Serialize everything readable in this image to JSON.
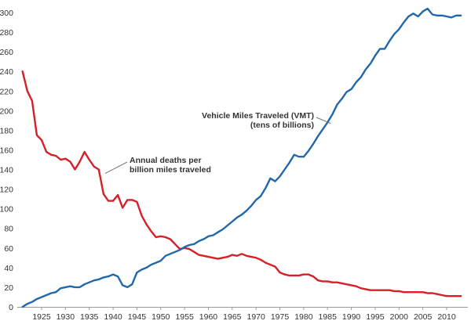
{
  "chart_data": {
    "type": "line",
    "title": "",
    "xlabel": "",
    "ylabel": "",
    "xlim": [
      1920,
      2014
    ],
    "ylim": [
      0,
      300
    ],
    "x_ticks": [
      1925,
      1930,
      1935,
      1940,
      1945,
      1950,
      1955,
      1960,
      1965,
      1970,
      1975,
      1980,
      1985,
      1990,
      1995,
      2000,
      2005,
      2010
    ],
    "y_ticks": [
      0,
      20,
      40,
      60,
      80,
      100,
      120,
      140,
      160,
      180,
      200,
      220,
      240,
      260,
      280,
      300
    ],
    "grid": false,
    "legend": "none",
    "series": [
      {
        "name": "Annual deaths per billion miles traveled",
        "color": "#d62027",
        "x": [
          1921,
          1922,
          1923,
          1924,
          1925,
          1926,
          1927,
          1928,
          1929,
          1930,
          1931,
          1932,
          1933,
          1934,
          1935,
          1936,
          1937,
          1938,
          1939,
          1940,
          1941,
          1942,
          1943,
          1944,
          1945,
          1946,
          1947,
          1948,
          1949,
          1950,
          1951,
          1952,
          1953,
          1954,
          1955,
          1956,
          1957,
          1958,
          1959,
          1960,
          1961,
          1962,
          1963,
          1964,
          1965,
          1966,
          1967,
          1968,
          1969,
          1970,
          1971,
          1972,
          1973,
          1974,
          1975,
          1976,
          1977,
          1978,
          1979,
          1980,
          1981,
          1982,
          1983,
          1984,
          1985,
          1986,
          1987,
          1988,
          1989,
          1990,
          1991,
          1992,
          1993,
          1994,
          1995,
          1996,
          1997,
          1998,
          1999,
          2000,
          2001,
          2002,
          2003,
          2004,
          2005,
          2006,
          2007,
          2008,
          2009,
          2010,
          2011,
          2012,
          2013
        ],
        "values": [
          240,
          220,
          210,
          175,
          170,
          158,
          155,
          154,
          150,
          151,
          148,
          140,
          148,
          158,
          150,
          143,
          140,
          115,
          108,
          108,
          114,
          101,
          109,
          109,
          107,
          93,
          84,
          77,
          71,
          72,
          71,
          69,
          64,
          59,
          60,
          59,
          56,
          53,
          52,
          51,
          50,
          49,
          50,
          51,
          53,
          52,
          54,
          52,
          51,
          50,
          48,
          45,
          43,
          41,
          35,
          33,
          32,
          32,
          32,
          33,
          33,
          31,
          27,
          26,
          26,
          25,
          25,
          24,
          23,
          22,
          21,
          19,
          18,
          17,
          17,
          17,
          17,
          17,
          16,
          16,
          15,
          15,
          15,
          15,
          15,
          14,
          14,
          13,
          12,
          11,
          11,
          11,
          11
        ]
      },
      {
        "name": "Vehicle Miles Traveled (VMT) (tens of billions)",
        "color": "#2167ab",
        "x": [
          1921,
          1922,
          1923,
          1924,
          1925,
          1926,
          1927,
          1928,
          1929,
          1930,
          1931,
          1932,
          1933,
          1934,
          1935,
          1936,
          1937,
          1938,
          1939,
          1940,
          1941,
          1942,
          1943,
          1944,
          1945,
          1946,
          1947,
          1948,
          1949,
          1950,
          1951,
          1952,
          1953,
          1954,
          1955,
          1956,
          1957,
          1958,
          1959,
          1960,
          1961,
          1962,
          1963,
          1964,
          1965,
          1966,
          1967,
          1968,
          1969,
          1970,
          1971,
          1972,
          1973,
          1974,
          1975,
          1976,
          1977,
          1978,
          1979,
          1980,
          1981,
          1982,
          1983,
          1984,
          1985,
          1986,
          1987,
          1988,
          1989,
          1990,
          1991,
          1992,
          1993,
          1994,
          1995,
          1996,
          1997,
          1998,
          1999,
          2000,
          2001,
          2002,
          2003,
          2004,
          2005,
          2006,
          2007,
          2008,
          2009,
          2010,
          2011,
          2012,
          2013
        ],
        "values": [
          0,
          3,
          5,
          8,
          10,
          12,
          14,
          15,
          19,
          20,
          21,
          20,
          20,
          23,
          25,
          27,
          28,
          30,
          31,
          33,
          31,
          22,
          20,
          23,
          35,
          38,
          40,
          43,
          45,
          47,
          52,
          54,
          56,
          58,
          61,
          63,
          64,
          67,
          69,
          72,
          73,
          76,
          79,
          83,
          87,
          91,
          94,
          98,
          103,
          109,
          113,
          121,
          131,
          128,
          133,
          140,
          147,
          155,
          153,
          153,
          159,
          166,
          174,
          181,
          188,
          196,
          206,
          212,
          219,
          222,
          229,
          234,
          242,
          248,
          256,
          263,
          263,
          271,
          278,
          283,
          290,
          296,
          299,
          296,
          301,
          304,
          298,
          297,
          297,
          296,
          295,
          297,
          297
        ]
      }
    ],
    "annotations": [
      {
        "series": 0,
        "lines": [
          "Annual deaths per",
          "billion miles traveled"
        ]
      },
      {
        "series": 1,
        "lines": [
          "Vehicle Miles Traveled (VMT)",
          "(tens of billions)"
        ]
      }
    ]
  }
}
